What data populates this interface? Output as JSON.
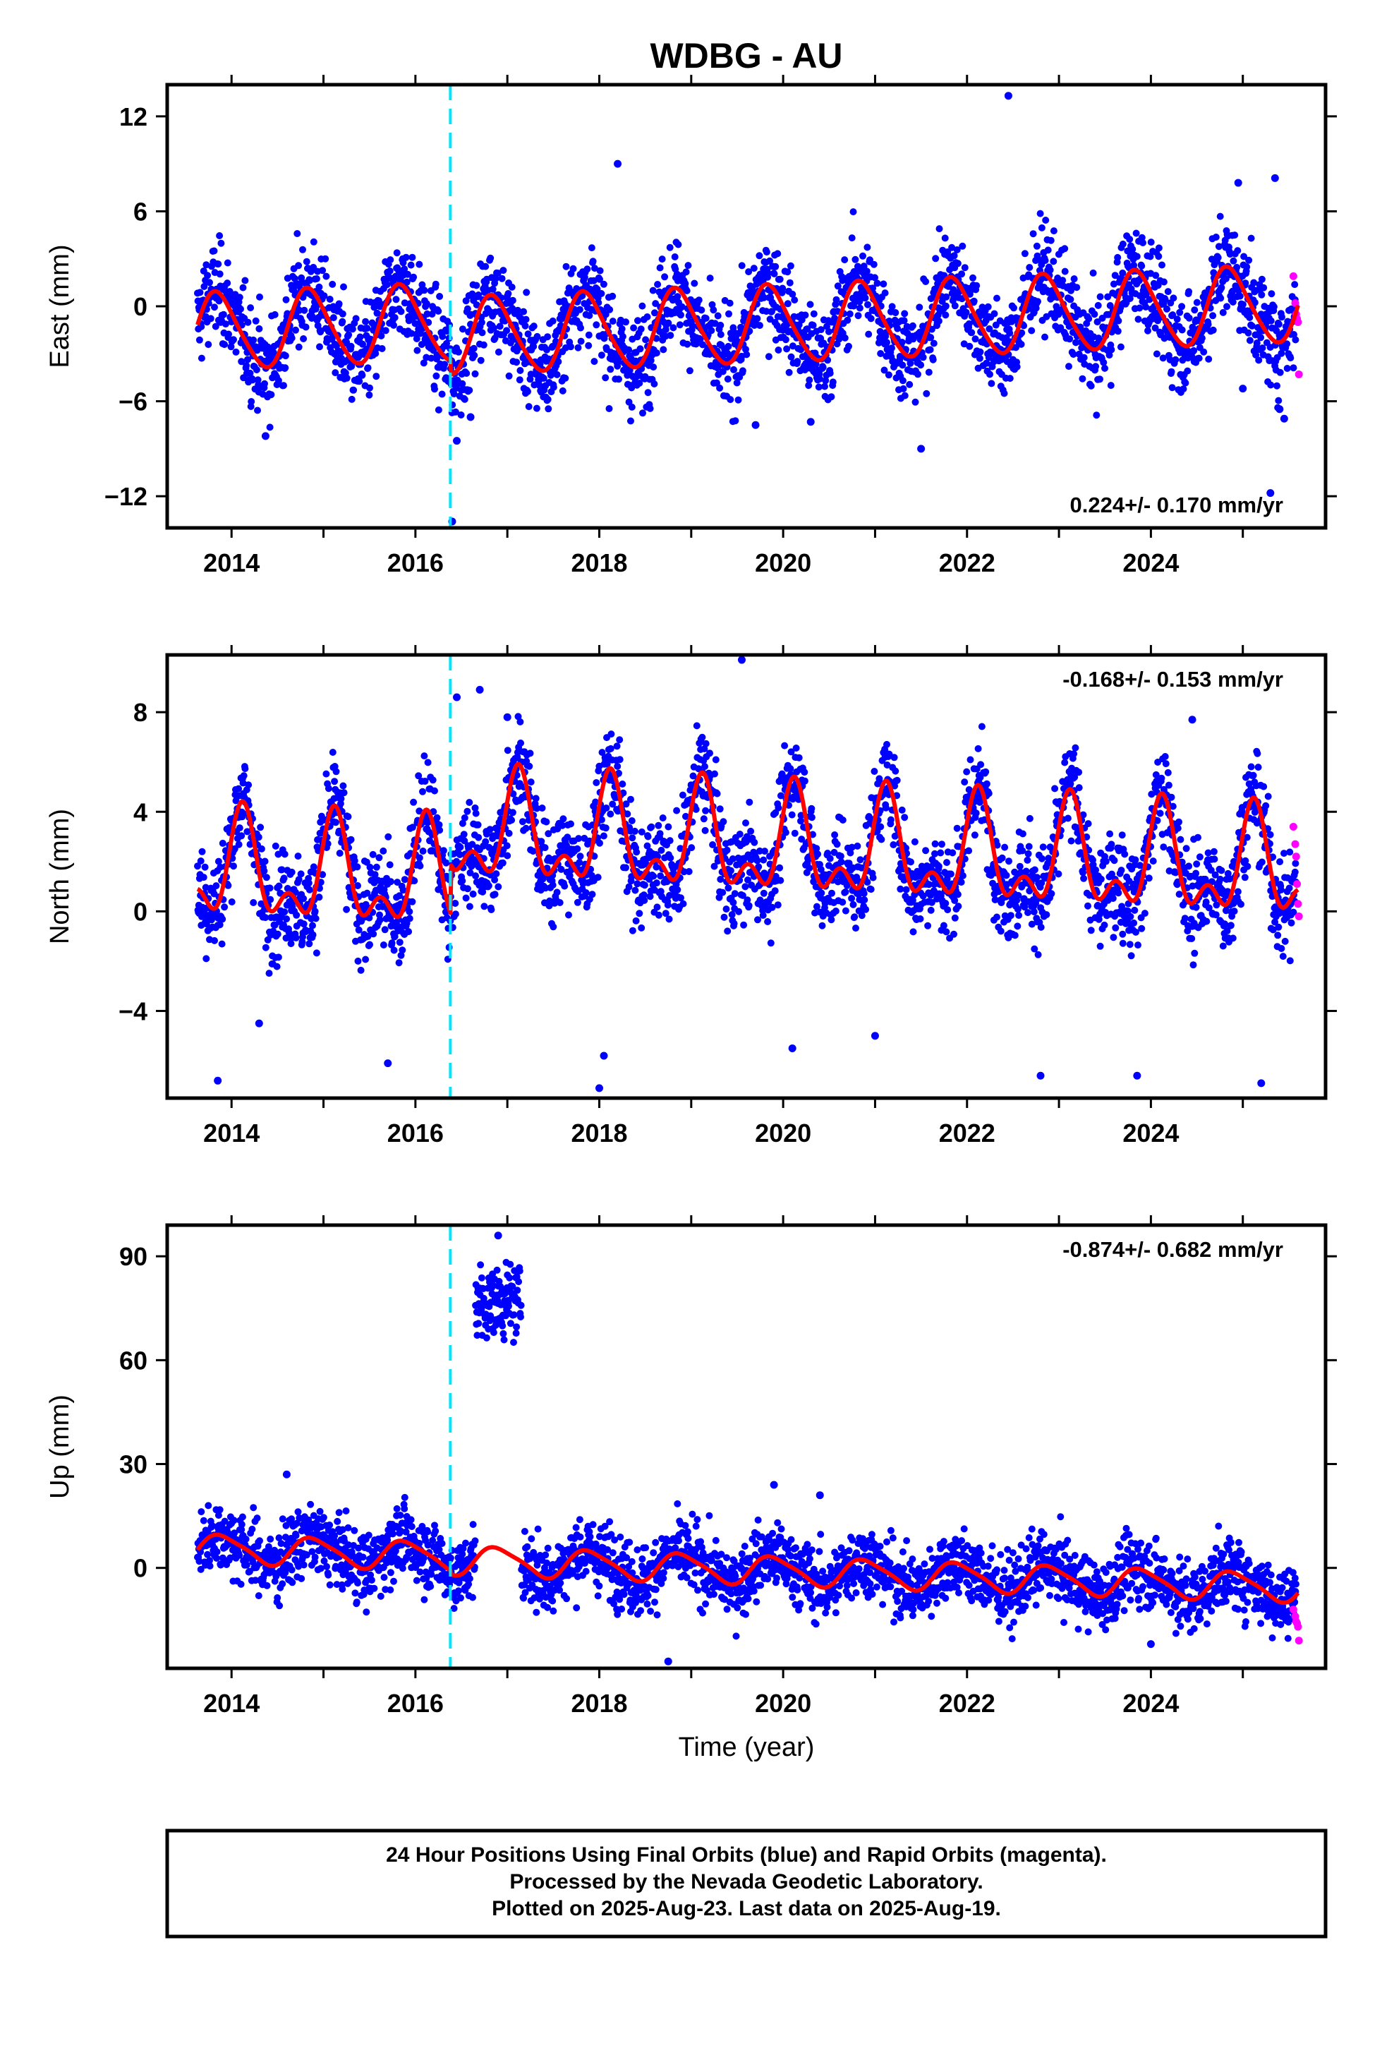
{
  "title": "WDBG - AU",
  "xlabel": "Time (year)",
  "footer": [
    "24 Hour Positions Using Final Orbits (blue) and Rapid Orbits (magenta).",
    "Processed by the Nevada Geodetic Laboratory.",
    "Plotted on 2025-Aug-23. Last data on 2025-Aug-19."
  ],
  "colors": {
    "final": "#0000ff",
    "rapid": "#ff00ff",
    "model": "#ff0000",
    "event": "#00e5ff",
    "frame": "#000000"
  },
  "chart_data": [
    {
      "type": "scatter",
      "name": "East",
      "ylabel": "East (mm)",
      "rate_text": "0.224+/- 0.170 mm/yr",
      "rate_position": "bottom-right",
      "xlim": [
        2013.3,
        2025.9
      ],
      "ylim": [
        -14,
        14
      ],
      "yticks": [
        12,
        6,
        0,
        -6,
        -12
      ],
      "ytick_labels": [
        "12",
        "6",
        "0",
        "−6",
        "−12"
      ],
      "xticks": [
        2014,
        2016,
        2018,
        2020,
        2022,
        2024
      ],
      "xtick_labels": [
        "2014",
        "2016",
        "2018",
        "2020",
        "2022",
        "2024"
      ],
      "event_x": 2016.38,
      "model": {
        "offset": -0.3,
        "trend": 0.224,
        "t0": 2019.6,
        "annual_amp": 2.4,
        "annual_phase": 0.85,
        "semiannual_amp": 0.3,
        "semiannual_phase": 0.25,
        "offsets": [
          {
            "x": 2016.38,
            "dy": -0.9
          }
        ]
      },
      "scatter_sd": 1.5,
      "outliers": [
        {
          "x": 2014.37,
          "y": -8.2
        },
        {
          "x": 2016.4,
          "y": -13.6
        },
        {
          "x": 2016.45,
          "y": -8.5
        },
        {
          "x": 2016.6,
          "y": -7.0
        },
        {
          "x": 2018.2,
          "y": 9.0
        },
        {
          "x": 2019.7,
          "y": -7.5
        },
        {
          "x": 2020.3,
          "y": -7.3
        },
        {
          "x": 2021.5,
          "y": -9.0
        },
        {
          "x": 2022.45,
          "y": 13.3
        },
        {
          "x": 2024.95,
          "y": 7.8
        },
        {
          "x": 2025.35,
          "y": 8.1
        },
        {
          "x": 2025.3,
          "y": -11.8
        },
        {
          "x": 2025.4,
          "y": -6.5
        },
        {
          "x": 2025.45,
          "y": -7.1
        },
        {
          "x": 2025.0,
          "y": -5.2
        }
      ],
      "rapid": [
        {
          "x": 2025.55,
          "y": 1.9
        },
        {
          "x": 2025.57,
          "y": 0.2
        },
        {
          "x": 2025.58,
          "y": -0.5
        },
        {
          "x": 2025.59,
          "y": -0.8
        },
        {
          "x": 2025.6,
          "y": -1.0
        },
        {
          "x": 2025.61,
          "y": -4.3
        }
      ]
    },
    {
      "type": "scatter",
      "name": "North",
      "ylabel": "North (mm)",
      "rate_text": "-0.168+/- 0.153 mm/yr",
      "rate_position": "top-right",
      "xlim": [
        2013.3,
        2025.9
      ],
      "ylim": [
        -7.5,
        10.3
      ],
      "yticks": [
        8,
        4,
        0,
        -4
      ],
      "ytick_labels": [
        "8",
        "4",
        "0",
        "−4"
      ],
      "xticks": [
        2014,
        2016,
        2018,
        2020,
        2022,
        2024
      ],
      "xtick_labels": [
        "2014",
        "2016",
        "2018",
        "2020",
        "2022",
        "2024"
      ],
      "event_x": 2016.38,
      "model": {
        "offset": 0.6,
        "trend": -0.168,
        "t0": 2019.6,
        "annual_amp": 1.8,
        "annual_phase": 0.12,
        "semiannual_amp": 1.1,
        "semiannual_phase": 0.12,
        "offsets": [
          {
            "x": 2016.38,
            "dy": 2.0
          }
        ]
      },
      "scatter_sd": 1.0,
      "outliers": [
        {
          "x": 2013.85,
          "y": -6.8
        },
        {
          "x": 2014.3,
          "y": -4.5
        },
        {
          "x": 2015.7,
          "y": -6.1
        },
        {
          "x": 2016.45,
          "y": 8.6
        },
        {
          "x": 2016.7,
          "y": 8.9
        },
        {
          "x": 2017.0,
          "y": 7.8
        },
        {
          "x": 2018.0,
          "y": -7.1
        },
        {
          "x": 2018.05,
          "y": -5.8
        },
        {
          "x": 2019.55,
          "y": 10.1
        },
        {
          "x": 2020.1,
          "y": -5.5
        },
        {
          "x": 2021.0,
          "y": -5.0
        },
        {
          "x": 2022.8,
          "y": -6.6
        },
        {
          "x": 2023.85,
          "y": -6.6
        },
        {
          "x": 2025.2,
          "y": -6.9
        },
        {
          "x": 2024.45,
          "y": 7.7
        }
      ],
      "rapid": [
        {
          "x": 2025.55,
          "y": 3.4
        },
        {
          "x": 2025.57,
          "y": 2.7
        },
        {
          "x": 2025.58,
          "y": 2.2
        },
        {
          "x": 2025.59,
          "y": 1.1
        },
        {
          "x": 2025.6,
          "y": 0.3
        },
        {
          "x": 2025.61,
          "y": -0.2
        }
      ]
    },
    {
      "type": "scatter",
      "name": "Up",
      "ylabel": "Up (mm)",
      "rate_text": "-0.874+/- 0.682 mm/yr",
      "rate_position": "top-right",
      "xlim": [
        2013.3,
        2025.9
      ],
      "ylim": [
        -29,
        99
      ],
      "yticks": [
        90,
        60,
        30,
        0
      ],
      "ytick_labels": [
        "90",
        "60",
        "30",
        "0"
      ],
      "xticks": [
        2014,
        2016,
        2018,
        2020,
        2022,
        2024
      ],
      "xtick_labels": [
        "2014",
        "2016",
        "2018",
        "2020",
        "2022",
        "2024"
      ],
      "event_x": 2016.38,
      "model": {
        "offset": 0.5,
        "trend": -0.874,
        "t0": 2019.6,
        "annual_amp": 4.0,
        "annual_phase": 0.9,
        "semiannual_amp": 0.8,
        "semiannual_phase": 0.25,
        "offsets": [
          {
            "x": 2016.38,
            "dy": -1.0
          }
        ]
      },
      "scatter_sd": 5.0,
      "cluster": {
        "x0": 2016.65,
        "x1": 2017.15,
        "y_center": 77,
        "y_sd": 6.5
      },
      "outliers": [
        {
          "x": 2016.9,
          "y": 96
        },
        {
          "x": 2018.75,
          "y": -27
        },
        {
          "x": 2014.6,
          "y": 27
        },
        {
          "x": 2019.9,
          "y": 24
        },
        {
          "x": 2024.0,
          "y": -22
        },
        {
          "x": 2020.4,
          "y": 21
        }
      ],
      "rapid": [
        {
          "x": 2025.55,
          "y": -12
        },
        {
          "x": 2025.57,
          "y": -14
        },
        {
          "x": 2025.58,
          "y": -15.5
        },
        {
          "x": 2025.59,
          "y": -16
        },
        {
          "x": 2025.6,
          "y": -17
        },
        {
          "x": 2025.61,
          "y": -21
        }
      ]
    }
  ]
}
